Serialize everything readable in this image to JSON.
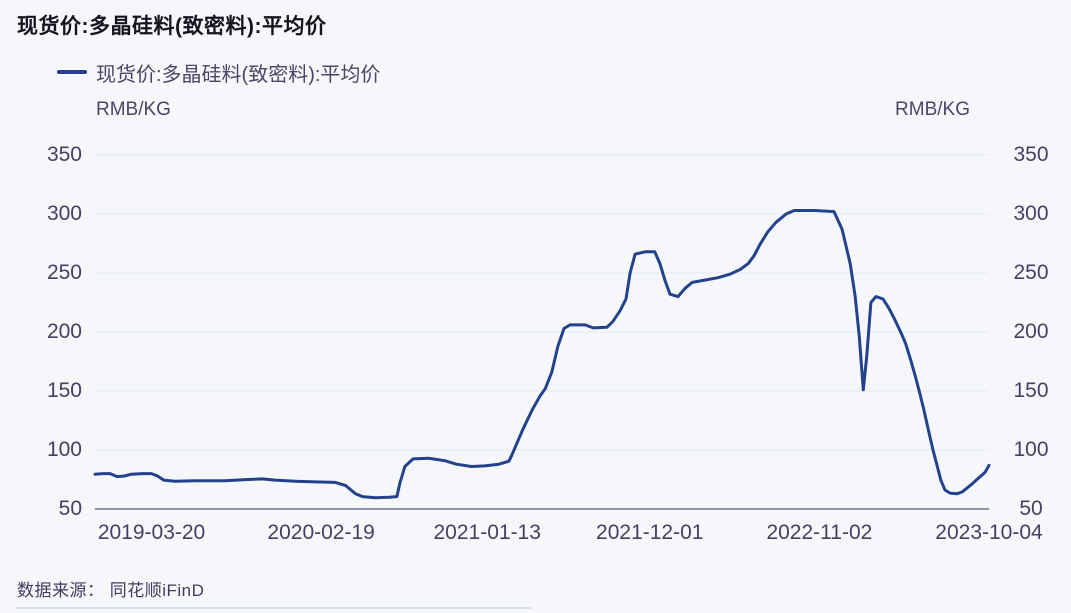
{
  "page": {
    "title": "现货价:多晶硅料(致密料):平均价",
    "source_label": "数据来源： 同花顺iFinD"
  },
  "legend": {
    "label": "现货价:多晶硅料(致密料):平均价"
  },
  "colors": {
    "background": "#f5f7fa",
    "line": "#24428c",
    "grid": "#e5e8f0",
    "axis_line": "#8b97ad",
    "title_text": "#17141f",
    "label_text": "#463f63"
  },
  "chart_data": {
    "type": "line",
    "title": "现货价:多晶硅料(致密料):平均价",
    "legend": [
      "现货价:多晶硅料(致密料):平均价"
    ],
    "ylabel_left": "RMB/KG",
    "ylabel_right": "RMB/KG",
    "ylim": [
      50,
      350
    ],
    "y_ticks": [
      50,
      100,
      150,
      200,
      250,
      300,
      350
    ],
    "x_tick_labels": [
      "2019-03-20",
      "2020-02-19",
      "2021-01-13",
      "2021-12-01",
      "2022-11-02",
      "2023-10-04"
    ],
    "x_range": [
      "2018-11-28",
      "2023-10-04"
    ],
    "grid": "horizontal",
    "legend_position": "top-left",
    "series": [
      {
        "name": "现货价:多晶硅料(致密料):平均价",
        "unit": "RMB/KG",
        "points": [
          [
            "2018-11-28",
            79.5
          ],
          [
            "2018-12-14",
            80
          ],
          [
            "2018-12-28",
            80
          ],
          [
            "2019-01-11",
            77.5
          ],
          [
            "2019-01-25",
            78
          ],
          [
            "2019-02-08",
            79.5
          ],
          [
            "2019-03-02",
            80
          ],
          [
            "2019-03-20",
            80
          ],
          [
            "2019-04-01",
            78
          ],
          [
            "2019-04-13",
            74.5
          ],
          [
            "2019-05-05",
            73.5
          ],
          [
            "2019-06-13",
            74
          ],
          [
            "2019-08-12",
            74
          ],
          [
            "2019-09-27",
            75
          ],
          [
            "2019-10-25",
            75.5
          ],
          [
            "2019-11-20",
            74.5
          ],
          [
            "2019-12-30",
            73.5
          ],
          [
            "2020-02-08",
            73
          ],
          [
            "2020-03-18",
            72.5
          ],
          [
            "2020-04-07",
            70
          ],
          [
            "2020-04-27",
            63
          ],
          [
            "2020-05-11",
            60.5
          ],
          [
            "2020-06-06",
            59.5
          ],
          [
            "2020-07-02",
            60
          ],
          [
            "2020-07-18",
            60.5
          ],
          [
            "2020-07-24",
            72
          ],
          [
            "2020-08-03",
            86
          ],
          [
            "2020-08-19",
            92.5
          ],
          [
            "2020-09-20",
            93
          ],
          [
            "2020-10-20",
            91
          ],
          [
            "2020-11-13",
            88
          ],
          [
            "2020-12-13",
            86
          ],
          [
            "2021-01-08",
            86.5
          ],
          [
            "2021-02-05",
            88
          ],
          [
            "2021-02-25",
            90.5
          ],
          [
            "2021-03-03",
            96
          ],
          [
            "2021-03-25",
            118
          ],
          [
            "2021-04-12",
            134
          ],
          [
            "2021-04-28",
            146
          ],
          [
            "2021-05-08",
            152
          ],
          [
            "2021-05-21",
            166
          ],
          [
            "2021-06-02",
            188
          ],
          [
            "2021-06-14",
            203
          ],
          [
            "2021-06-26",
            206
          ],
          [
            "2021-07-26",
            206
          ],
          [
            "2021-08-11",
            203.5
          ],
          [
            "2021-09-07",
            204
          ],
          [
            "2021-09-19",
            209
          ],
          [
            "2021-10-03",
            218
          ],
          [
            "2021-10-15",
            228
          ],
          [
            "2021-10-23",
            250
          ],
          [
            "2021-11-02",
            266
          ],
          [
            "2021-11-22",
            268
          ],
          [
            "2021-12-11",
            268
          ],
          [
            "2021-12-21",
            258
          ],
          [
            "2021-12-31",
            244
          ],
          [
            "2022-01-10",
            232
          ],
          [
            "2022-01-26",
            230
          ],
          [
            "2022-02-09",
            237
          ],
          [
            "2022-02-23",
            242
          ],
          [
            "2022-03-20",
            244
          ],
          [
            "2022-04-15",
            246
          ],
          [
            "2022-05-09",
            249
          ],
          [
            "2022-05-29",
            253
          ],
          [
            "2022-06-14",
            258
          ],
          [
            "2022-06-26",
            265
          ],
          [
            "2022-07-07",
            274
          ],
          [
            "2022-07-23",
            285
          ],
          [
            "2022-08-08",
            293
          ],
          [
            "2022-08-28",
            300
          ],
          [
            "2022-09-13",
            303
          ],
          [
            "2022-10-24",
            303
          ],
          [
            "2022-12-01",
            302
          ],
          [
            "2022-12-17",
            287
          ],
          [
            "2023-01-02",
            258
          ],
          [
            "2023-01-12",
            230
          ],
          [
            "2023-01-20",
            196
          ],
          [
            "2023-01-28",
            151
          ],
          [
            "2023-02-04",
            180
          ],
          [
            "2023-02-12",
            225
          ],
          [
            "2023-02-22",
            230
          ],
          [
            "2023-03-08",
            228
          ],
          [
            "2023-03-20",
            220
          ],
          [
            "2023-04-01",
            210
          ],
          [
            "2023-04-13",
            199
          ],
          [
            "2023-04-22",
            190
          ],
          [
            "2023-05-02",
            176
          ],
          [
            "2023-05-12",
            161
          ],
          [
            "2023-05-20",
            148
          ],
          [
            "2023-05-28",
            134
          ],
          [
            "2023-06-07",
            115
          ],
          [
            "2023-06-15",
            100
          ],
          [
            "2023-06-23",
            87
          ],
          [
            "2023-07-01",
            74
          ],
          [
            "2023-07-09",
            66
          ],
          [
            "2023-07-19",
            63.5
          ],
          [
            "2023-08-02",
            63
          ],
          [
            "2023-08-12",
            64.5
          ],
          [
            "2023-08-22",
            68
          ],
          [
            "2023-08-31",
            71
          ],
          [
            "2023-09-10",
            75
          ],
          [
            "2023-09-18",
            78
          ],
          [
            "2023-09-26",
            81
          ],
          [
            "2023-10-04",
            87
          ]
        ]
      }
    ]
  }
}
